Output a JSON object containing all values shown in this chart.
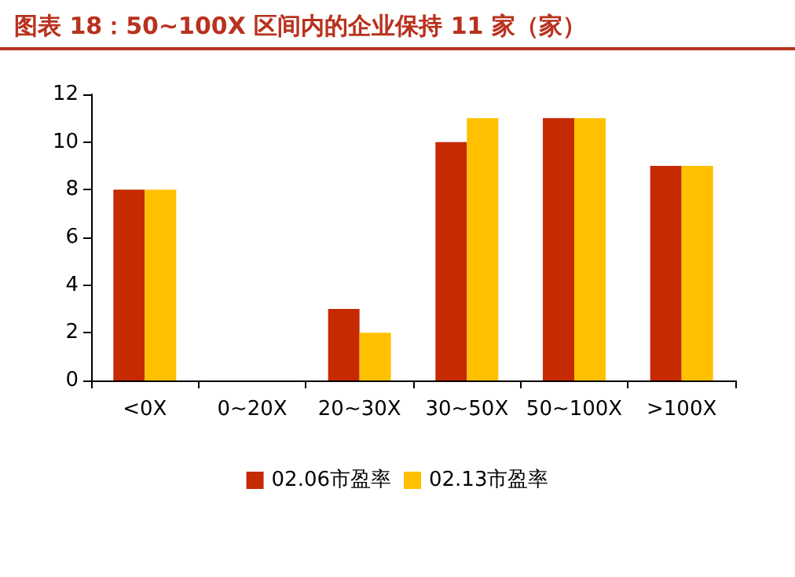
{
  "chart_data": {
    "type": "bar",
    "title": "图表 18：50~100X 区间内的企业保持 11 家（家）",
    "categories": [
      "<0X",
      "0~20X",
      "20~30X",
      "30~50X",
      "50~100X",
      ">100X"
    ],
    "series": [
      {
        "name": "02.06市盈率",
        "color": "#c52a00",
        "values": [
          8,
          0,
          3,
          10,
          11,
          9
        ]
      },
      {
        "name": "02.13市盈率",
        "color": "#ffc000",
        "values": [
          8,
          0,
          2,
          11,
          11,
          9
        ]
      }
    ],
    "ylim": [
      0,
      12
    ],
    "yticks": [
      0,
      2,
      4,
      6,
      8,
      10,
      12
    ],
    "grid": false,
    "legend": "bottom"
  }
}
